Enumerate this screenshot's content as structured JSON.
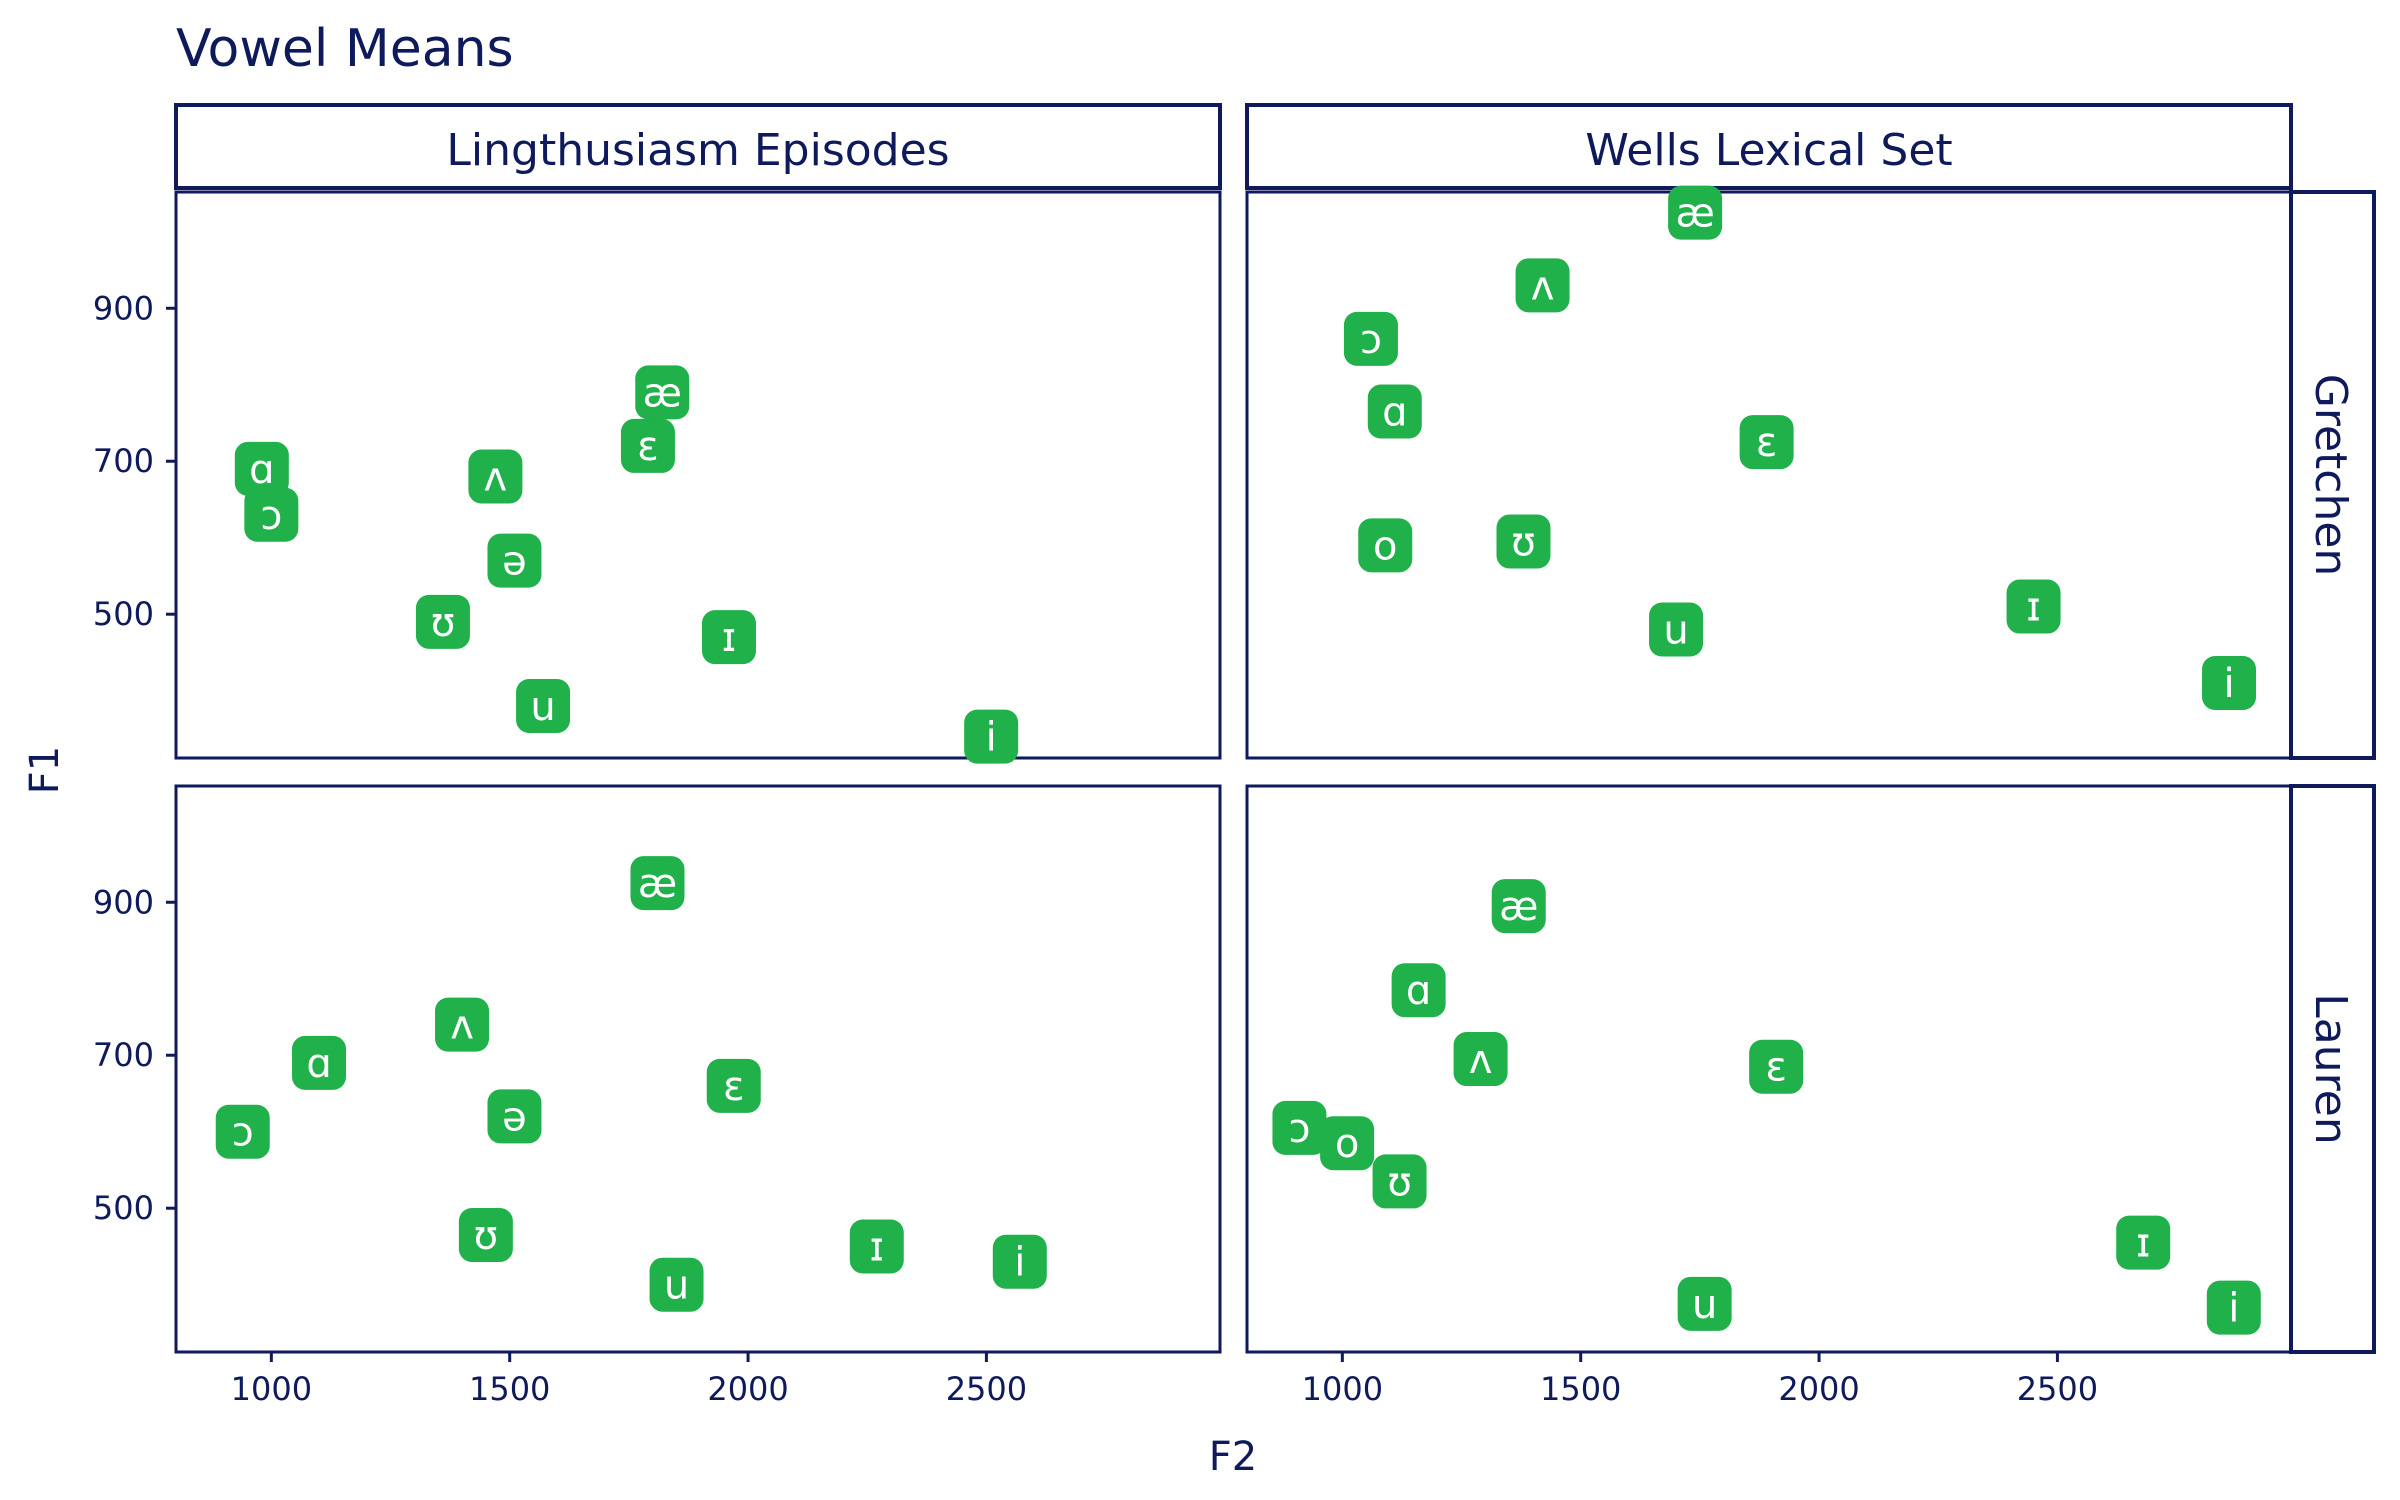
{
  "chart_data": {
    "type": "scatter",
    "title": "Vowel Means",
    "xlabel": "F2",
    "ylabel": "F1",
    "xlim": [
      800,
      2990
    ],
    "ylim": [
      312,
      1052
    ],
    "x_ticks": [
      1000,
      1500,
      2000,
      2500
    ],
    "y_ticks": [
      500,
      700,
      900
    ],
    "grid": false,
    "point_color": "#21b14b",
    "text_color": "#0e1a5c",
    "col_facets": [
      "Lingthusiasm Episodes",
      "Wells Lexical Set"
    ],
    "row_facets": [
      "Gretchen",
      "Lauren"
    ],
    "panels": [
      {
        "row": "Gretchen",
        "col": "Lingthusiasm Episodes",
        "points": [
          {
            "label": "ɑ",
            "x": 980,
            "y": 690
          },
          {
            "label": "ɔ",
            "x": 1000,
            "y": 630
          },
          {
            "label": "ʌ",
            "x": 1470,
            "y": 680
          },
          {
            "label": "ə",
            "x": 1510,
            "y": 570
          },
          {
            "label": "ʊ",
            "x": 1360,
            "y": 490
          },
          {
            "label": "u",
            "x": 1570,
            "y": 380
          },
          {
            "label": "æ",
            "x": 1820,
            "y": 790
          },
          {
            "label": "ɛ",
            "x": 1790,
            "y": 720
          },
          {
            "label": "ɪ",
            "x": 1960,
            "y": 470
          },
          {
            "label": "i",
            "x": 2510,
            "y": 340
          }
        ]
      },
      {
        "row": "Gretchen",
        "col": "Wells Lexical Set",
        "points": [
          {
            "label": "æ",
            "x": 1740,
            "y": 1025
          },
          {
            "label": "ʌ",
            "x": 1420,
            "y": 930
          },
          {
            "label": "ɔ",
            "x": 1060,
            "y": 860
          },
          {
            "label": "ɑ",
            "x": 1110,
            "y": 765
          },
          {
            "label": "ɛ",
            "x": 1890,
            "y": 725
          },
          {
            "label": "o",
            "x": 1090,
            "y": 590
          },
          {
            "label": "ʊ",
            "x": 1380,
            "y": 595
          },
          {
            "label": "u",
            "x": 1700,
            "y": 480
          },
          {
            "label": "ɪ",
            "x": 2450,
            "y": 510
          },
          {
            "label": "i",
            "x": 2860,
            "y": 410
          }
        ]
      },
      {
        "row": "Lauren",
        "col": "Lingthusiasm Episodes",
        "points": [
          {
            "label": "æ",
            "x": 1810,
            "y": 925
          },
          {
            "label": "ʌ",
            "x": 1400,
            "y": 740
          },
          {
            "label": "ɑ",
            "x": 1100,
            "y": 690
          },
          {
            "label": "ɔ",
            "x": 940,
            "y": 600
          },
          {
            "label": "ə",
            "x": 1510,
            "y": 620
          },
          {
            "label": "ɛ",
            "x": 1970,
            "y": 660
          },
          {
            "label": "ʊ",
            "x": 1450,
            "y": 465
          },
          {
            "label": "u",
            "x": 1850,
            "y": 400
          },
          {
            "label": "ɪ",
            "x": 2270,
            "y": 450
          },
          {
            "label": "i",
            "x": 2570,
            "y": 430
          }
        ]
      },
      {
        "row": "Lauren",
        "col": "Wells Lexical Set",
        "points": [
          {
            "label": "æ",
            "x": 1370,
            "y": 895
          },
          {
            "label": "ɑ",
            "x": 1160,
            "y": 785
          },
          {
            "label": "ʌ",
            "x": 1290,
            "y": 695
          },
          {
            "label": "ɛ",
            "x": 1910,
            "y": 685
          },
          {
            "label": "ɔ",
            "x": 910,
            "y": 605
          },
          {
            "label": "o",
            "x": 1010,
            "y": 585
          },
          {
            "label": "ʊ",
            "x": 1120,
            "y": 535
          },
          {
            "label": "ɪ",
            "x": 2680,
            "y": 455
          },
          {
            "label": "u",
            "x": 1760,
            "y": 375
          },
          {
            "label": "i",
            "x": 2870,
            "y": 370
          }
        ]
      }
    ]
  }
}
